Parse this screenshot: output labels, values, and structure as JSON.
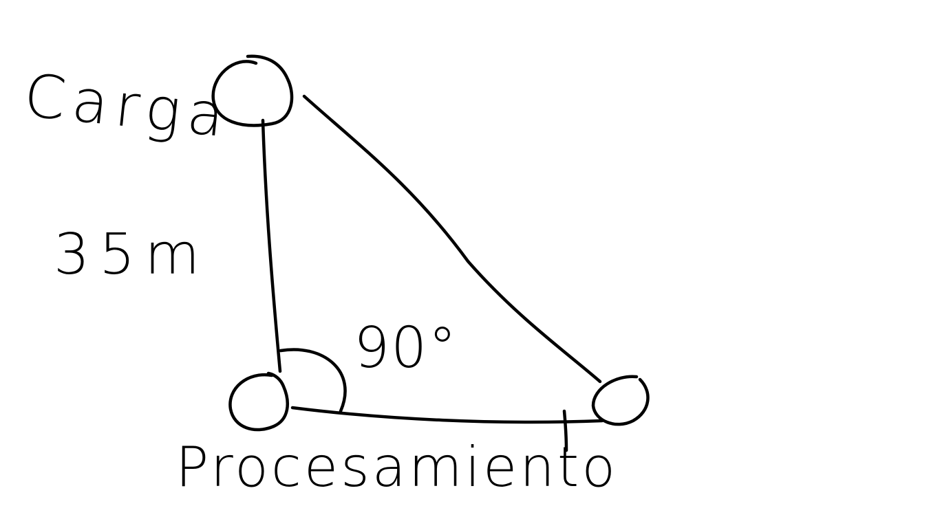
{
  "diagram": {
    "nodes": {
      "top": "Carga",
      "bottom_left": "Procesamiento",
      "bottom_right": ""
    },
    "edge_left_label": "35m",
    "angle_label": "90°",
    "colors": {
      "stroke": "#000000",
      "background": "#ffffff"
    }
  }
}
